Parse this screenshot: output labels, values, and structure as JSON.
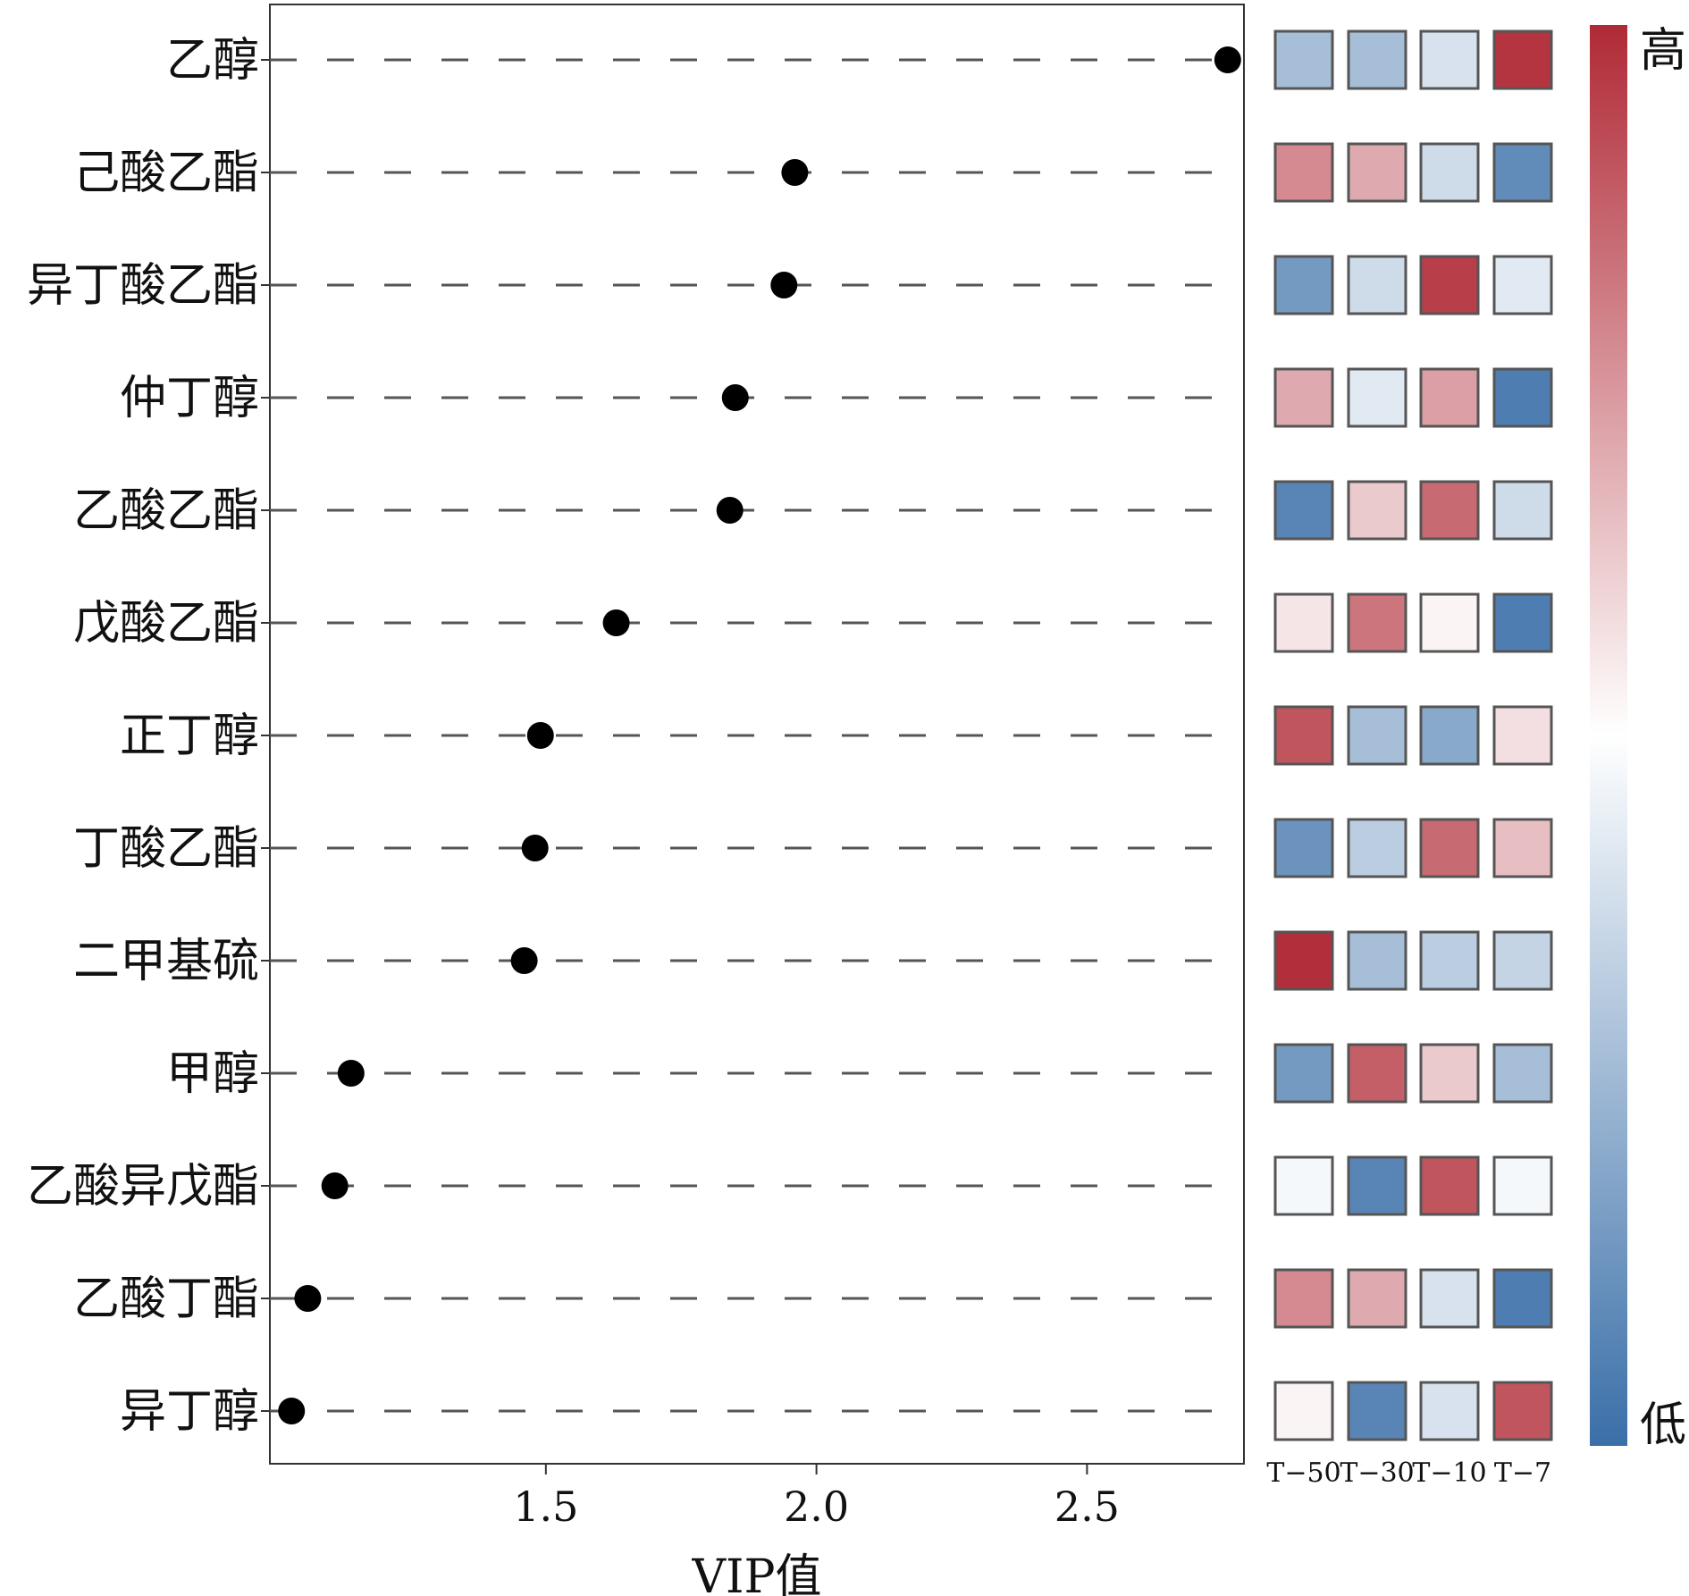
{
  "chart_data": {
    "type": "scatter",
    "xlabel": "VIP值",
    "x_ticks": [
      "1.5",
      "2.0",
      "2.5"
    ],
    "x_tick_values": [
      1.5,
      2.0,
      2.5
    ],
    "xlim": [
      0.99,
      2.79
    ],
    "grid": false,
    "compounds": [
      "乙醇",
      "己酸乙酯",
      "异丁酸乙酯",
      "仲丁醇",
      "乙酸乙酯",
      "戊酸乙酯",
      "正丁醇",
      "丁酸乙酯",
      "二甲基硫",
      "甲醇",
      "乙酸异戊酯",
      "乙酸丁酯",
      "异丁醇"
    ],
    "vip_values": [
      2.76,
      1.96,
      1.94,
      1.85,
      1.84,
      1.63,
      1.49,
      1.48,
      1.46,
      1.14,
      1.11,
      1.06,
      1.03
    ],
    "marker_color": "#000000",
    "heatmap": {
      "columns": [
        "T−50",
        "T−30",
        "T−10",
        "T−7"
      ],
      "values": [
        [
          -0.45,
          -0.45,
          -0.2,
          0.95
        ],
        [
          0.55,
          0.4,
          -0.25,
          -0.8
        ],
        [
          -0.7,
          -0.25,
          0.9,
          -0.15
        ],
        [
          0.4,
          -0.15,
          0.45,
          -0.9
        ],
        [
          -0.85,
          0.25,
          0.7,
          -0.25
        ],
        [
          0.12,
          0.65,
          0.05,
          -0.9
        ],
        [
          0.8,
          -0.45,
          -0.6,
          0.15
        ],
        [
          -0.75,
          -0.35,
          0.7,
          0.3
        ],
        [
          0.98,
          -0.45,
          -0.35,
          -0.3
        ],
        [
          -0.7,
          0.75,
          0.25,
          -0.45
        ],
        [
          -0.05,
          -0.85,
          0.8,
          -0.05
        ],
        [
          0.55,
          0.4,
          -0.2,
          -0.9
        ],
        [
          0.05,
          -0.85,
          -0.2,
          0.8
        ]
      ],
      "colorbar_high_label": "高",
      "colorbar_low_label": "低",
      "low_color": "#3a6fa8",
      "mid_color": "#ffffff",
      "high_color": "#b02a36"
    }
  }
}
